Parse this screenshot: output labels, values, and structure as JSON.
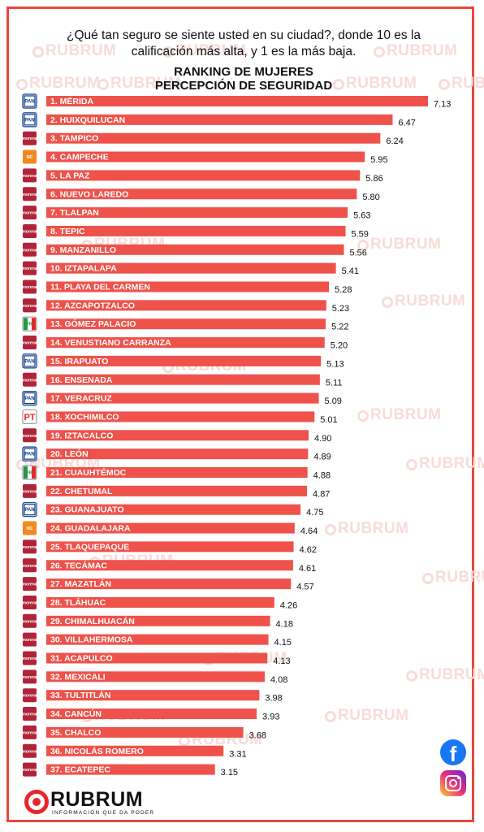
{
  "header": {
    "question_line1": "¿Qué tan seguro se siente usted en su ciudad?, donde 10 es la",
    "question_line2": "calificación más alta, y  1 es la más baja."
  },
  "watermark_text": "RUBRUM",
  "brand": {
    "name": "RUBRUM",
    "tagline": "INFORMACIÓN QUE DA PODER"
  },
  "social": {
    "facebook": "f"
  },
  "colors": {
    "bar": "#ee524a",
    "frame": "#e8483e",
    "pan": "#0a3a8c",
    "morena": "#b0243a",
    "mc": "#f08a1f",
    "pt": "#e8262a",
    "pri": "#229944"
  },
  "party_badges": {
    "PAN": "PAN",
    "MORENA": "morena",
    "MC": "MC",
    "PT": "PT",
    "PRI": "PRI"
  },
  "chart_data": {
    "type": "bar",
    "orientation": "horizontal",
    "title": "RANKING DE MUJERES\nPERCEPCIÓN DE SEGURIDAD",
    "title_line1": "RANKING DE MUJERES",
    "title_line2": "PERCEPCIÓN DE SEGURIDAD",
    "xlim": [
      0,
      7.13
    ],
    "grid": false,
    "categories": [
      "1. MÉRIDA",
      "2. HUIXQUILUCAN",
      "3. TAMPICO",
      "4. CAMPECHE",
      "5. LA PAZ",
      "6. NUEVO LAREDO",
      "7. TLALPAN",
      "8. TEPIC",
      "9. MANZANILLO",
      "10. IZTAPALAPA",
      "11. PLAYA DEL CARMEN",
      "12. AZCAPOTZALCO",
      "13. GÓMEZ PALACIO",
      "14. VENUSTIANO CARRANZA",
      "15. IRAPUATO",
      "16. ENSENADA",
      "17. VERACRUZ",
      "18. XOCHIMILCO",
      "19. IZTACALCO",
      "20. LEÓN",
      "21. CUAUHTÉMOC",
      "22. CHETUMAL",
      "23. GUANAJUATO",
      "24. GUADALAJARA",
      "25. TLAQUEPAQUE",
      "26. TECÁMAC",
      "27. MAZATLÁN",
      "28. TLÁHUAC",
      "29. CHIMALHUACÁN",
      "30. VILLAHERMOSA",
      "31. ACAPULCO",
      "32. MEXICALI",
      "33. TULTITLÁN",
      "34. CANCÚN",
      "35. CHALCO",
      "36. NICOLÁS ROMERO",
      "37. ECATEPEC"
    ],
    "value_labels": [
      "7.13",
      "6.47",
      "6.24",
      "5.95",
      "5.86",
      "5.80",
      "5.63",
      "5.59",
      "5.56",
      "5.41",
      "5.28",
      "5.23",
      "5.22",
      "5.20",
      "5.13",
      "5.11",
      "5.09",
      "5.01",
      "4.90",
      "4.89",
      "4.88",
      "4.87",
      "4.75",
      "4.64",
      "4.62",
      "4.61",
      "4.57",
      "4.26",
      "4.18",
      "4.15",
      "4.13",
      "4.08",
      "3.98",
      "3.93",
      "3.68",
      "3.31",
      "3.15"
    ],
    "values": [
      7.13,
      6.47,
      6.24,
      5.95,
      5.86,
      5.8,
      5.63,
      5.59,
      5.56,
      5.41,
      5.28,
      5.23,
      5.22,
      5.2,
      5.13,
      5.11,
      5.09,
      5.01,
      4.9,
      4.89,
      4.88,
      4.87,
      4.75,
      4.64,
      4.62,
      4.61,
      4.57,
      4.26,
      4.18,
      4.15,
      4.13,
      4.08,
      3.98,
      3.93,
      3.68,
      3.31,
      3.15
    ],
    "parties": [
      "PAN",
      "PAN",
      "MORENA",
      "MC",
      "MORENA",
      "MORENA",
      "MORENA",
      "MORENA",
      "MORENA",
      "MORENA",
      "MORENA",
      "MORENA",
      "PRI",
      "MORENA",
      "PAN",
      "MORENA",
      "PAN",
      "PT",
      "MORENA",
      "PAN",
      "PRI",
      "MORENA",
      "PAN",
      "MC",
      "MORENA",
      "MORENA",
      "MORENA",
      "MORENA",
      "MORENA",
      "MORENA",
      "MORENA",
      "MORENA",
      "MORENA",
      "MORENA",
      "MORENA",
      "MORENA",
      "MORENA"
    ]
  }
}
